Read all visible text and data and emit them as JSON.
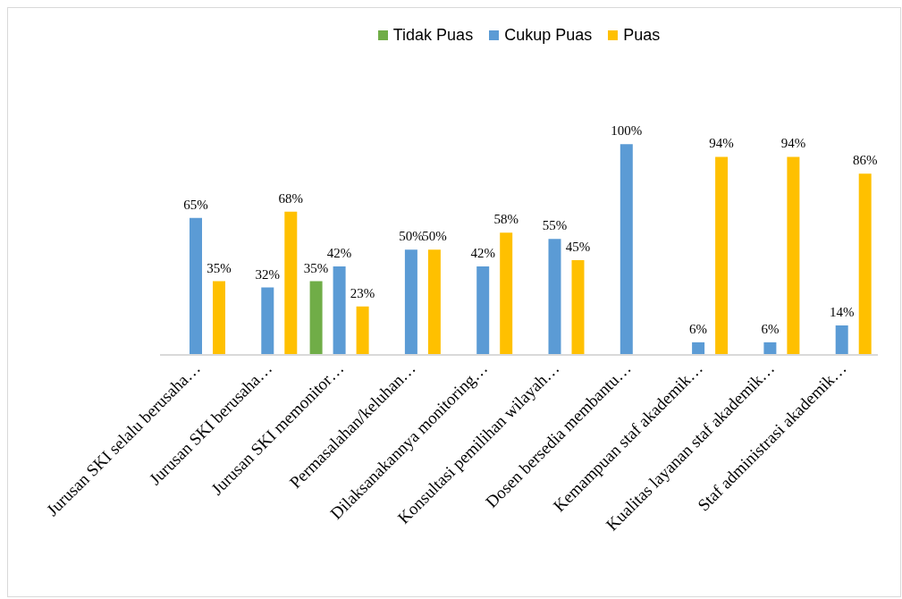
{
  "chart_data": {
    "type": "bar",
    "categories": [
      "Jurusan SKI selalu berusaha…",
      "Jurusan SKI berusaha…",
      "Jurusan SKI memonitor…",
      "Permasalahan/keluhan…",
      "Dilaksanakannya monitoring…",
      "Konsultasi pemilihan wilayah…",
      "Dosen bersedia membantu…",
      "Kemampuan staf akademik…",
      "Kualitas layanan staf akademik…",
      "Staf administrasi akademik…"
    ],
    "series": [
      {
        "name": "Tidak Puas",
        "color": "#70ad47",
        "values": [
          null,
          null,
          35,
          null,
          null,
          null,
          null,
          null,
          null,
          null
        ],
        "value_labels": [
          null,
          null,
          "35%",
          null,
          null,
          null,
          null,
          null,
          null,
          null
        ]
      },
      {
        "name": "Cukup Puas",
        "color": "#5b9bd5",
        "values": [
          65,
          32,
          42,
          50,
          42,
          55,
          100,
          6,
          6,
          14
        ],
        "value_labels": [
          "65%",
          "32%",
          "42%",
          "50%",
          "42%",
          "55%",
          "100%",
          "6%",
          "6%",
          "14%"
        ]
      },
      {
        "name": "Puas",
        "color": "#ffc000",
        "values": [
          35,
          68,
          23,
          50,
          58,
          45,
          null,
          94,
          94,
          86
        ],
        "value_labels": [
          "35%",
          "68%",
          "23%",
          "50%",
          "58%",
          "45%",
          null,
          "94%",
          "94%",
          "86%"
        ]
      }
    ],
    "legend": "top",
    "grid": false
  }
}
